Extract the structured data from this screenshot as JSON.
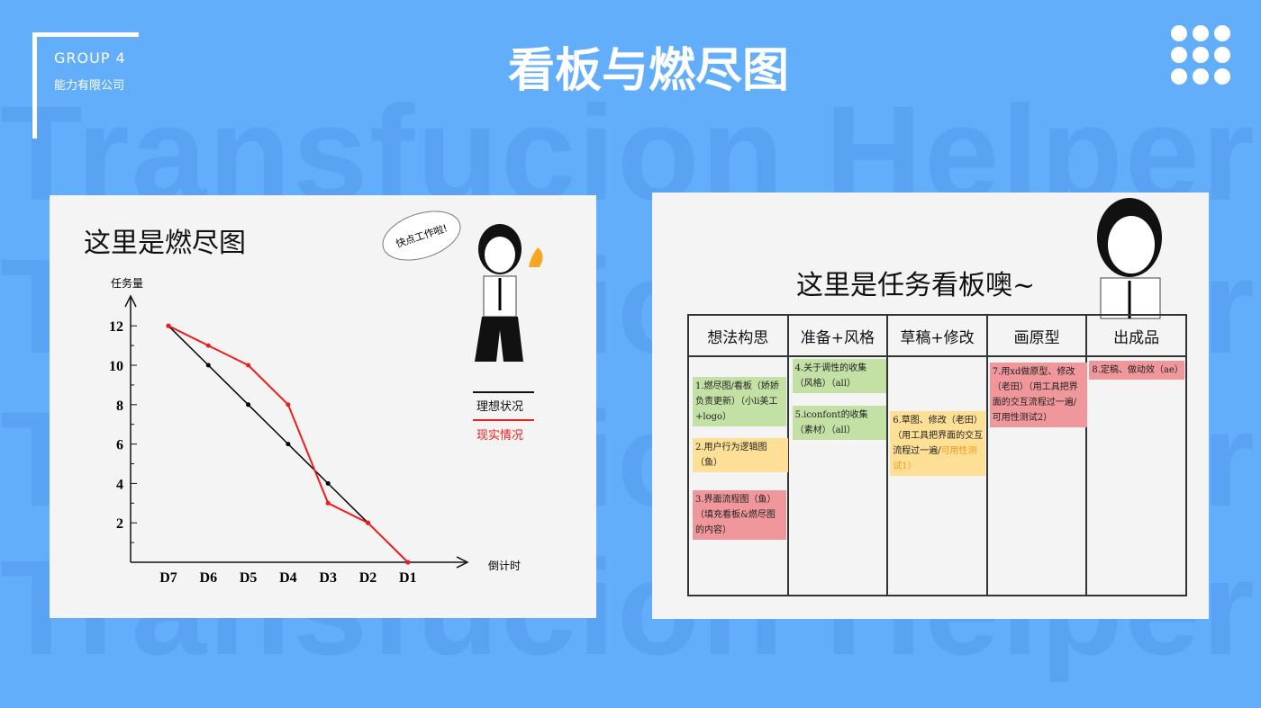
{
  "watermark": "Transfucion Helper",
  "header": {
    "group": "GROUP 4",
    "company": "能力有限公司",
    "title": "看板与燃尽图",
    "menu_icon": "grid-dots-icon"
  },
  "burndown": {
    "heading": "这里是燃尽图",
    "speech": "快点工作啦!",
    "legend": [
      "理想状况",
      "现实情况"
    ]
  },
  "chart_data": {
    "type": "line",
    "ylabel": "任务量",
    "xlabel": "倒计时",
    "categories": [
      "D7",
      "D6",
      "D5",
      "D4",
      "D3",
      "D2",
      "D1"
    ],
    "yticks": [
      2,
      4,
      6,
      8,
      10,
      12
    ],
    "ylim": [
      0,
      13
    ],
    "series": [
      {
        "name": "理想状况",
        "color": "#000000",
        "values": [
          12,
          10,
          8,
          6,
          4,
          2,
          0
        ]
      },
      {
        "name": "现实情况",
        "color": "#ee1c1c",
        "values": [
          12,
          11,
          10,
          8,
          3,
          2,
          0
        ]
      }
    ]
  },
  "kanban": {
    "heading": "这里是任务看板噢~",
    "columns": [
      {
        "title": "想法构思",
        "notes": [
          {
            "text": "1.燃尽图/看板（娇娇负责更新）（小li美工+logo）",
            "color": "g"
          },
          {
            "text": "2.用户行为逻辑图（鱼）",
            "color": "y"
          },
          {
            "text": "3.界面流程图（鱼）（填充看板&燃尽图的内容）",
            "color": "r"
          }
        ]
      },
      {
        "title": "准备+风格",
        "notes": [
          {
            "text": "4.关于调性的收集（风格）（all）",
            "color": "g"
          },
          {
            "text": "5.iconfont的收集（素材）（all）",
            "color": "g"
          }
        ]
      },
      {
        "title": "草稿+修改",
        "notes": [
          {
            "text": "6.草图、修改（老田）（用工具把界面的交互流程过一遍/",
            "extra": "可用性测试1）",
            "color": "y"
          }
        ]
      },
      {
        "title": "画原型",
        "notes": [
          {
            "text": "7.用xd做原型、修改（老田）（用工具把界面的交互流程过一遍/可用性测试2）",
            "color": "r"
          }
        ]
      },
      {
        "title": "出成品",
        "notes": [
          {
            "text": "8.定稿、做动效（ae）",
            "color": "r"
          }
        ]
      }
    ]
  }
}
